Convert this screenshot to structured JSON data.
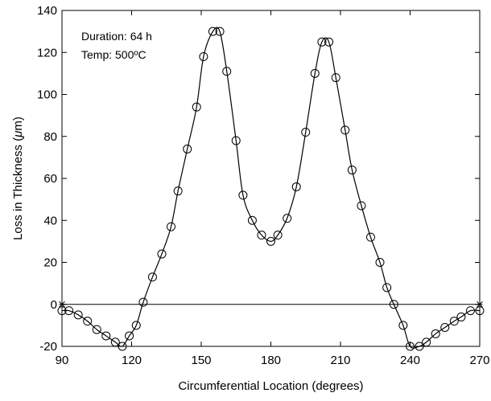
{
  "chart_data": {
    "type": "line",
    "title": "",
    "xlabel": "Circumferential Location (degrees)",
    "ylabel_prefix": "Loss in Thickness (",
    "ylabel_unit_mu": "μ",
    "ylabel_unit_rest": "m)",
    "xlim": [
      90,
      270
    ],
    "ylim": [
      -20,
      140
    ],
    "xticks": [
      90,
      120,
      150,
      180,
      210,
      240,
      270
    ],
    "yticks": [
      -20,
      0,
      20,
      40,
      60,
      80,
      100,
      120,
      140
    ],
    "grid": false,
    "legend": "none",
    "annotations": [
      "Duration: 64 h",
      "Temp: 500ºC"
    ],
    "colors": {
      "line": "#000000",
      "marker": "#000000",
      "background": "#ffffff"
    },
    "series": [
      {
        "marker": "open-circle",
        "x": [
          90,
          93,
          97,
          101,
          105,
          109,
          113,
          116,
          119,
          122,
          125,
          129,
          133,
          137,
          140,
          144,
          148,
          151,
          155,
          158,
          161,
          165,
          168,
          172,
          176,
          180,
          183,
          187,
          191,
          195,
          199,
          202,
          205,
          208,
          212,
          215,
          219,
          223,
          227,
          230,
          233,
          237,
          240,
          244,
          247,
          251,
          255,
          259,
          262,
          266,
          270
        ],
        "y": [
          -3,
          -3,
          -5,
          -8,
          -12,
          -15,
          -18,
          -20,
          -15,
          -10,
          1,
          13,
          24,
          37,
          54,
          74,
          94,
          118,
          130,
          130,
          111,
          78,
          52,
          40,
          33,
          30,
          33,
          41,
          56,
          82,
          110,
          125,
          125,
          108,
          83,
          64,
          47,
          32,
          20,
          8,
          0,
          -10,
          -20,
          -20,
          -18,
          -14,
          -11,
          -8,
          -6,
          -3,
          -3
        ]
      }
    ],
    "reference_line": {
      "y": 0,
      "end_marker": "asterisk"
    }
  }
}
